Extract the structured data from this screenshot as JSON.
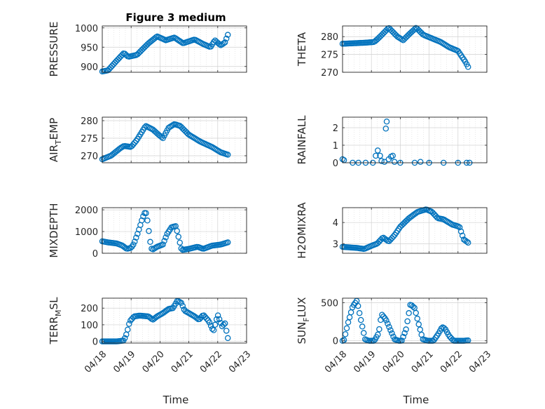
{
  "figure": {
    "title": "Figure 3 medium",
    "xlabel": "Time",
    "marker_color": "#0072BD"
  },
  "chart_data": [
    {
      "type": "scatter",
      "ylabel": "PRESSURE",
      "ylim": [
        885,
        1005
      ],
      "yticks": [
        900,
        950,
        1000
      ],
      "xlim": [
        0,
        5
      ],
      "xticks": [
        0,
        1,
        2,
        3,
        4,
        5
      ],
      "xticklabels": [
        "04/18",
        "04/19",
        "04/20",
        "04/21",
        "04/22",
        "04/23"
      ],
      "show_xticklabels": false,
      "key_points": [
        [
          0,
          887
        ],
        [
          0.2,
          890
        ],
        [
          0.5,
          915
        ],
        [
          0.75,
          935
        ],
        [
          0.9,
          925
        ],
        [
          1.2,
          930
        ],
        [
          1.6,
          960
        ],
        [
          1.9,
          978
        ],
        [
          2.2,
          968
        ],
        [
          2.5,
          975
        ],
        [
          2.8,
          960
        ],
        [
          3.2,
          970
        ],
        [
          3.5,
          958
        ],
        [
          3.75,
          950
        ],
        [
          3.9,
          968
        ],
        [
          4.1,
          955
        ],
        [
          4.25,
          962
        ],
        [
          4.35,
          982
        ]
      ]
    },
    {
      "type": "scatter",
      "ylabel": "THETA",
      "ylim": [
        270,
        283
      ],
      "yticks": [
        270,
        275,
        280
      ],
      "xlim": [
        0,
        5
      ],
      "xticks": [
        0,
        1,
        2,
        3,
        4,
        5
      ],
      "xticklabels": [
        "04/18",
        "04/19",
        "04/20",
        "04/21",
        "04/22",
        "04/23"
      ],
      "show_xticklabels": false,
      "key_points": [
        [
          0,
          278
        ],
        [
          0.8,
          278.3
        ],
        [
          1.1,
          278.5
        ],
        [
          1.3,
          280
        ],
        [
          1.6,
          282.5
        ],
        [
          1.9,
          280
        ],
        [
          2.1,
          279
        ],
        [
          2.35,
          281
        ],
        [
          2.55,
          282.5
        ],
        [
          2.8,
          280.5
        ],
        [
          3.1,
          279.5
        ],
        [
          3.4,
          278.5
        ],
        [
          3.7,
          277
        ],
        [
          4.0,
          276
        ],
        [
          4.25,
          273
        ],
        [
          4.35,
          271.5
        ]
      ]
    },
    {
      "type": "scatter",
      "ylabel": "AIR_TEMP",
      "ylim": [
        268,
        281
      ],
      "yticks": [
        270,
        275,
        280
      ],
      "xlim": [
        0,
        5
      ],
      "xticks": [
        0,
        1,
        2,
        3,
        4,
        5
      ],
      "xticklabels": [
        "04/18",
        "04/19",
        "04/20",
        "04/21",
        "04/22",
        "04/23"
      ],
      "show_xticklabels": false,
      "key_points": [
        [
          0,
          269
        ],
        [
          0.3,
          270
        ],
        [
          0.6,
          272
        ],
        [
          0.75,
          272.8
        ],
        [
          1.0,
          272.5
        ],
        [
          1.2,
          274.5
        ],
        [
          1.5,
          278.5
        ],
        [
          1.75,
          277.5
        ],
        [
          1.95,
          276
        ],
        [
          2.1,
          275
        ],
        [
          2.3,
          278
        ],
        [
          2.5,
          279
        ],
        [
          2.7,
          278.5
        ],
        [
          3.0,
          276
        ],
        [
          3.4,
          274
        ],
        [
          3.8,
          272.5
        ],
        [
          4.1,
          271
        ],
        [
          4.35,
          270.3
        ]
      ]
    },
    {
      "type": "scatter",
      "ylabel": "RAINFALL",
      "ylim": [
        0,
        2.6
      ],
      "yticks": [
        0,
        1,
        2
      ],
      "xlim": [
        0,
        5
      ],
      "xticks": [
        0,
        1,
        2,
        3,
        4,
        5
      ],
      "xticklabels": [
        "04/18",
        "04/19",
        "04/20",
        "04/21",
        "04/22",
        "04/23"
      ],
      "show_xticklabels": false,
      "points": [
        [
          0,
          0.2
        ],
        [
          0.05,
          0.15
        ],
        [
          0.35,
          0
        ],
        [
          0.55,
          0
        ],
        [
          0.8,
          0
        ],
        [
          1.05,
          0
        ],
        [
          1.15,
          0.4
        ],
        [
          1.22,
          0.7
        ],
        [
          1.3,
          0.4
        ],
        [
          1.35,
          0.1
        ],
        [
          1.45,
          0.05
        ],
        [
          1.5,
          1.95
        ],
        [
          1.53,
          2.35
        ],
        [
          1.6,
          0.2
        ],
        [
          1.68,
          0.35
        ],
        [
          1.74,
          0.4
        ],
        [
          1.8,
          0.05
        ],
        [
          2.0,
          0
        ],
        [
          2.5,
          0
        ],
        [
          2.7,
          0.05
        ],
        [
          3.0,
          0
        ],
        [
          3.5,
          0
        ],
        [
          4.0,
          0
        ],
        [
          4.3,
          0
        ],
        [
          4.4,
          0
        ]
      ]
    },
    {
      "type": "scatter",
      "ylabel": "MIXDEPTH",
      "ylim": [
        0,
        2100
      ],
      "yticks": [
        0,
        1000,
        2000
      ],
      "xlim": [
        0,
        5
      ],
      "xticks": [
        0,
        1,
        2,
        3,
        4,
        5
      ],
      "xticklabels": [
        "04/18",
        "04/19",
        "04/20",
        "04/21",
        "04/22",
        "04/23"
      ],
      "show_xticklabels": false,
      "key_points": [
        [
          0,
          550
        ],
        [
          0.2,
          500
        ],
        [
          0.5,
          450
        ],
        [
          0.7,
          350
        ],
        [
          0.85,
          200
        ],
        [
          1.0,
          250
        ],
        [
          1.1,
          450
        ],
        [
          1.25,
          1000
        ],
        [
          1.4,
          1650
        ],
        [
          1.5,
          1950
        ],
        [
          1.58,
          1400
        ],
        [
          1.65,
          600
        ],
        [
          1.72,
          150
        ],
        [
          1.9,
          300
        ],
        [
          2.1,
          400
        ],
        [
          2.25,
          900
        ],
        [
          2.4,
          1200
        ],
        [
          2.55,
          1250
        ],
        [
          2.65,
          700
        ],
        [
          2.75,
          150
        ],
        [
          3.0,
          200
        ],
        [
          3.3,
          300
        ],
        [
          3.5,
          200
        ],
        [
          3.8,
          350
        ],
        [
          4.1,
          400
        ],
        [
          4.35,
          500
        ]
      ]
    },
    {
      "type": "scatter",
      "ylabel": "H2OMIXRA",
      "ylim": [
        2.55,
        4.7
      ],
      "yticks": [
        3,
        4
      ],
      "xlim": [
        0,
        5
      ],
      "xticks": [
        0,
        1,
        2,
        3,
        4,
        5
      ],
      "xticklabels": [
        "04/18",
        "04/19",
        "04/20",
        "04/21",
        "04/22",
        "04/23"
      ],
      "show_xticklabels": false,
      "key_points": [
        [
          0,
          2.85
        ],
        [
          0.5,
          2.8
        ],
        [
          0.75,
          2.75
        ],
        [
          1.0,
          2.9
        ],
        [
          1.2,
          3.0
        ],
        [
          1.4,
          3.3
        ],
        [
          1.6,
          3.1
        ],
        [
          1.8,
          3.4
        ],
        [
          2.0,
          3.8
        ],
        [
          2.3,
          4.2
        ],
        [
          2.6,
          4.5
        ],
        [
          2.9,
          4.62
        ],
        [
          3.1,
          4.5
        ],
        [
          3.3,
          4.2
        ],
        [
          3.5,
          4.15
        ],
        [
          3.8,
          3.9
        ],
        [
          4.05,
          3.8
        ],
        [
          4.2,
          3.2
        ],
        [
          4.35,
          3.05
        ]
      ]
    },
    {
      "type": "scatter",
      "ylabel": "TERR_MSL",
      "ylim": [
        -10,
        260
      ],
      "yticks": [
        0,
        100,
        200
      ],
      "xlim": [
        0,
        5
      ],
      "xticks": [
        0,
        1,
        2,
        3,
        4,
        5
      ],
      "xticklabels": [
        "04/18",
        "04/19",
        "04/20",
        "04/21",
        "04/22",
        "04/23"
      ],
      "show_xticklabels": true,
      "key_points": [
        [
          0,
          0
        ],
        [
          0.5,
          0
        ],
        [
          0.75,
          5
        ],
        [
          0.85,
          50
        ],
        [
          0.95,
          120
        ],
        [
          1.1,
          150
        ],
        [
          1.3,
          155
        ],
        [
          1.6,
          150
        ],
        [
          1.75,
          130
        ],
        [
          1.9,
          150
        ],
        [
          2.1,
          170
        ],
        [
          2.3,
          195
        ],
        [
          2.45,
          200
        ],
        [
          2.6,
          245
        ],
        [
          2.75,
          230
        ],
        [
          2.85,
          185
        ],
        [
          3.0,
          170
        ],
        [
          3.2,
          150
        ],
        [
          3.35,
          130
        ],
        [
          3.5,
          160
        ],
        [
          3.7,
          120
        ],
        [
          3.85,
          60
        ],
        [
          4.0,
          160
        ],
        [
          4.15,
          90
        ],
        [
          4.25,
          110
        ],
        [
          4.35,
          20
        ]
      ]
    },
    {
      "type": "scatter",
      "ylabel": "SUN_FLUX",
      "ylim": [
        -30,
        560
      ],
      "yticks": [
        0,
        500
      ],
      "xlim": [
        0,
        5
      ],
      "xticks": [
        0,
        1,
        2,
        3,
        4,
        5
      ],
      "xticklabels": [
        "04/18",
        "04/19",
        "04/20",
        "04/21",
        "04/22",
        "04/23"
      ],
      "show_xticklabels": true,
      "key_points": [
        [
          0,
          0
        ],
        [
          0.05,
          10
        ],
        [
          0.2,
          250
        ],
        [
          0.35,
          450
        ],
        [
          0.5,
          530
        ],
        [
          0.62,
          300
        ],
        [
          0.78,
          20
        ],
        [
          0.9,
          0
        ],
        [
          1.1,
          0
        ],
        [
          1.25,
          100
        ],
        [
          1.35,
          350
        ],
        [
          1.5,
          280
        ],
        [
          1.65,
          150
        ],
        [
          1.8,
          20
        ],
        [
          1.95,
          0
        ],
        [
          2.05,
          0
        ],
        [
          2.2,
          150
        ],
        [
          2.35,
          480
        ],
        [
          2.5,
          430
        ],
        [
          2.65,
          200
        ],
        [
          2.78,
          20
        ],
        [
          2.95,
          0
        ],
        [
          3.15,
          0
        ],
        [
          3.3,
          80
        ],
        [
          3.45,
          180
        ],
        [
          3.55,
          160
        ],
        [
          3.7,
          60
        ],
        [
          3.85,
          0
        ],
        [
          4.2,
          0
        ],
        [
          4.35,
          5
        ]
      ]
    }
  ]
}
